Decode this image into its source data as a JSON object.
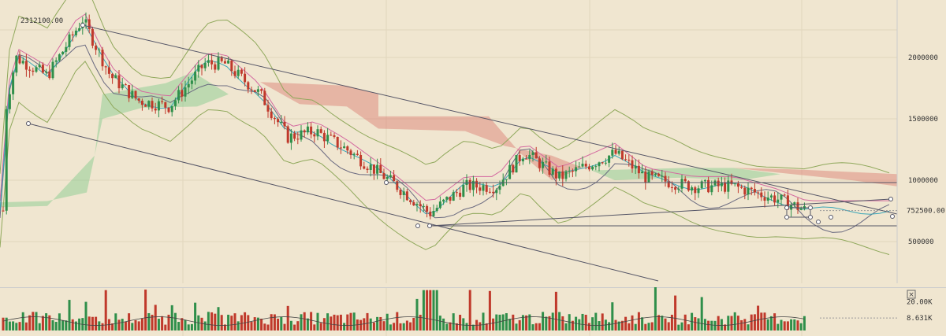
{
  "colors": {
    "background": "#f0e6d0",
    "grid": "#e1d6bd",
    "up": "#2f8f4a",
    "down": "#c0392b",
    "trendline": "#555566",
    "bollinger": "#8fa85b",
    "cloud_bull": "#7fc98a",
    "cloud_bear": "#d97a6e",
    "lagging": "#6a6a80",
    "pink": "#d46aa0",
    "teal": "#3aa6b8"
  },
  "chart_data": [
    {
      "type": "candlestick",
      "title": "",
      "price_axis": {
        "ticks": [
          {
            "value": 2000000,
            "label": "2000000"
          },
          {
            "value": 1500000,
            "label": "1500000"
          },
          {
            "value": 1000000,
            "label": "1000000"
          },
          {
            "value": 500000,
            "label": "500000"
          }
        ],
        "last_price": {
          "value": 752500,
          "label": "752500.00"
        },
        "range": [
          250000,
          2420000
        ]
      },
      "high_annotation": {
        "value": 2312100,
        "label": "2312100.00"
      },
      "overlays": [
        "Ichimoku Cloud",
        "Bollinger Bands",
        "Moving Averages",
        "Trend Channel"
      ],
      "legend_placement": "none",
      "grid": true
    },
    {
      "type": "bar",
      "title": "",
      "volume_axis": {
        "ticks": [
          {
            "value": 20000,
            "label": "20.00K"
          },
          {
            "value": 8631,
            "label": "8.631K"
          }
        ],
        "range": [
          0,
          30000
        ]
      },
      "close_button": "×"
    }
  ]
}
